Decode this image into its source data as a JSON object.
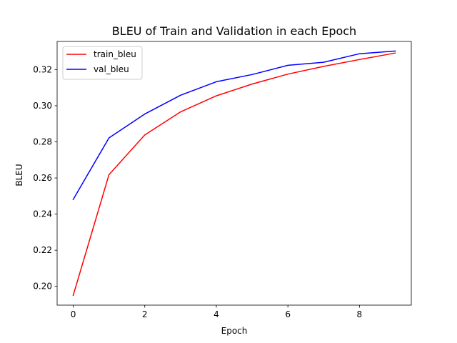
{
  "chart_data": {
    "type": "line",
    "title": "BLEU of Train and Validation in each Epoch",
    "xlabel": "Epoch",
    "ylabel": "BLEU",
    "xlim": [
      -0.45,
      9.45
    ],
    "ylim": [
      0.1896,
      0.3356
    ],
    "xticks": [
      0,
      2,
      4,
      6,
      8
    ],
    "yticks": [
      0.2,
      0.22,
      0.24,
      0.26,
      0.28,
      0.3,
      0.32
    ],
    "xtick_labels": [
      "0",
      "2",
      "4",
      "6",
      "8"
    ],
    "ytick_labels": [
      "0.20",
      "0.22",
      "0.24",
      "0.26",
      "0.28",
      "0.30",
      "0.32"
    ],
    "x": [
      0,
      1,
      2,
      3,
      4,
      5,
      6,
      7,
      8,
      9
    ],
    "series": [
      {
        "name": "train_bleu",
        "color": "#ff0000",
        "values": [
          0.195,
          0.2618,
          0.2838,
          0.2966,
          0.3055,
          0.312,
          0.3175,
          0.3218,
          0.3256,
          0.3292
        ]
      },
      {
        "name": "val_bleu",
        "color": "#0000ff",
        "values": [
          0.2481,
          0.2822,
          0.2954,
          0.3058,
          0.3133,
          0.3173,
          0.3224,
          0.3241,
          0.3288,
          0.3303
        ]
      }
    ],
    "grid": false,
    "legend": "top-left"
  }
}
